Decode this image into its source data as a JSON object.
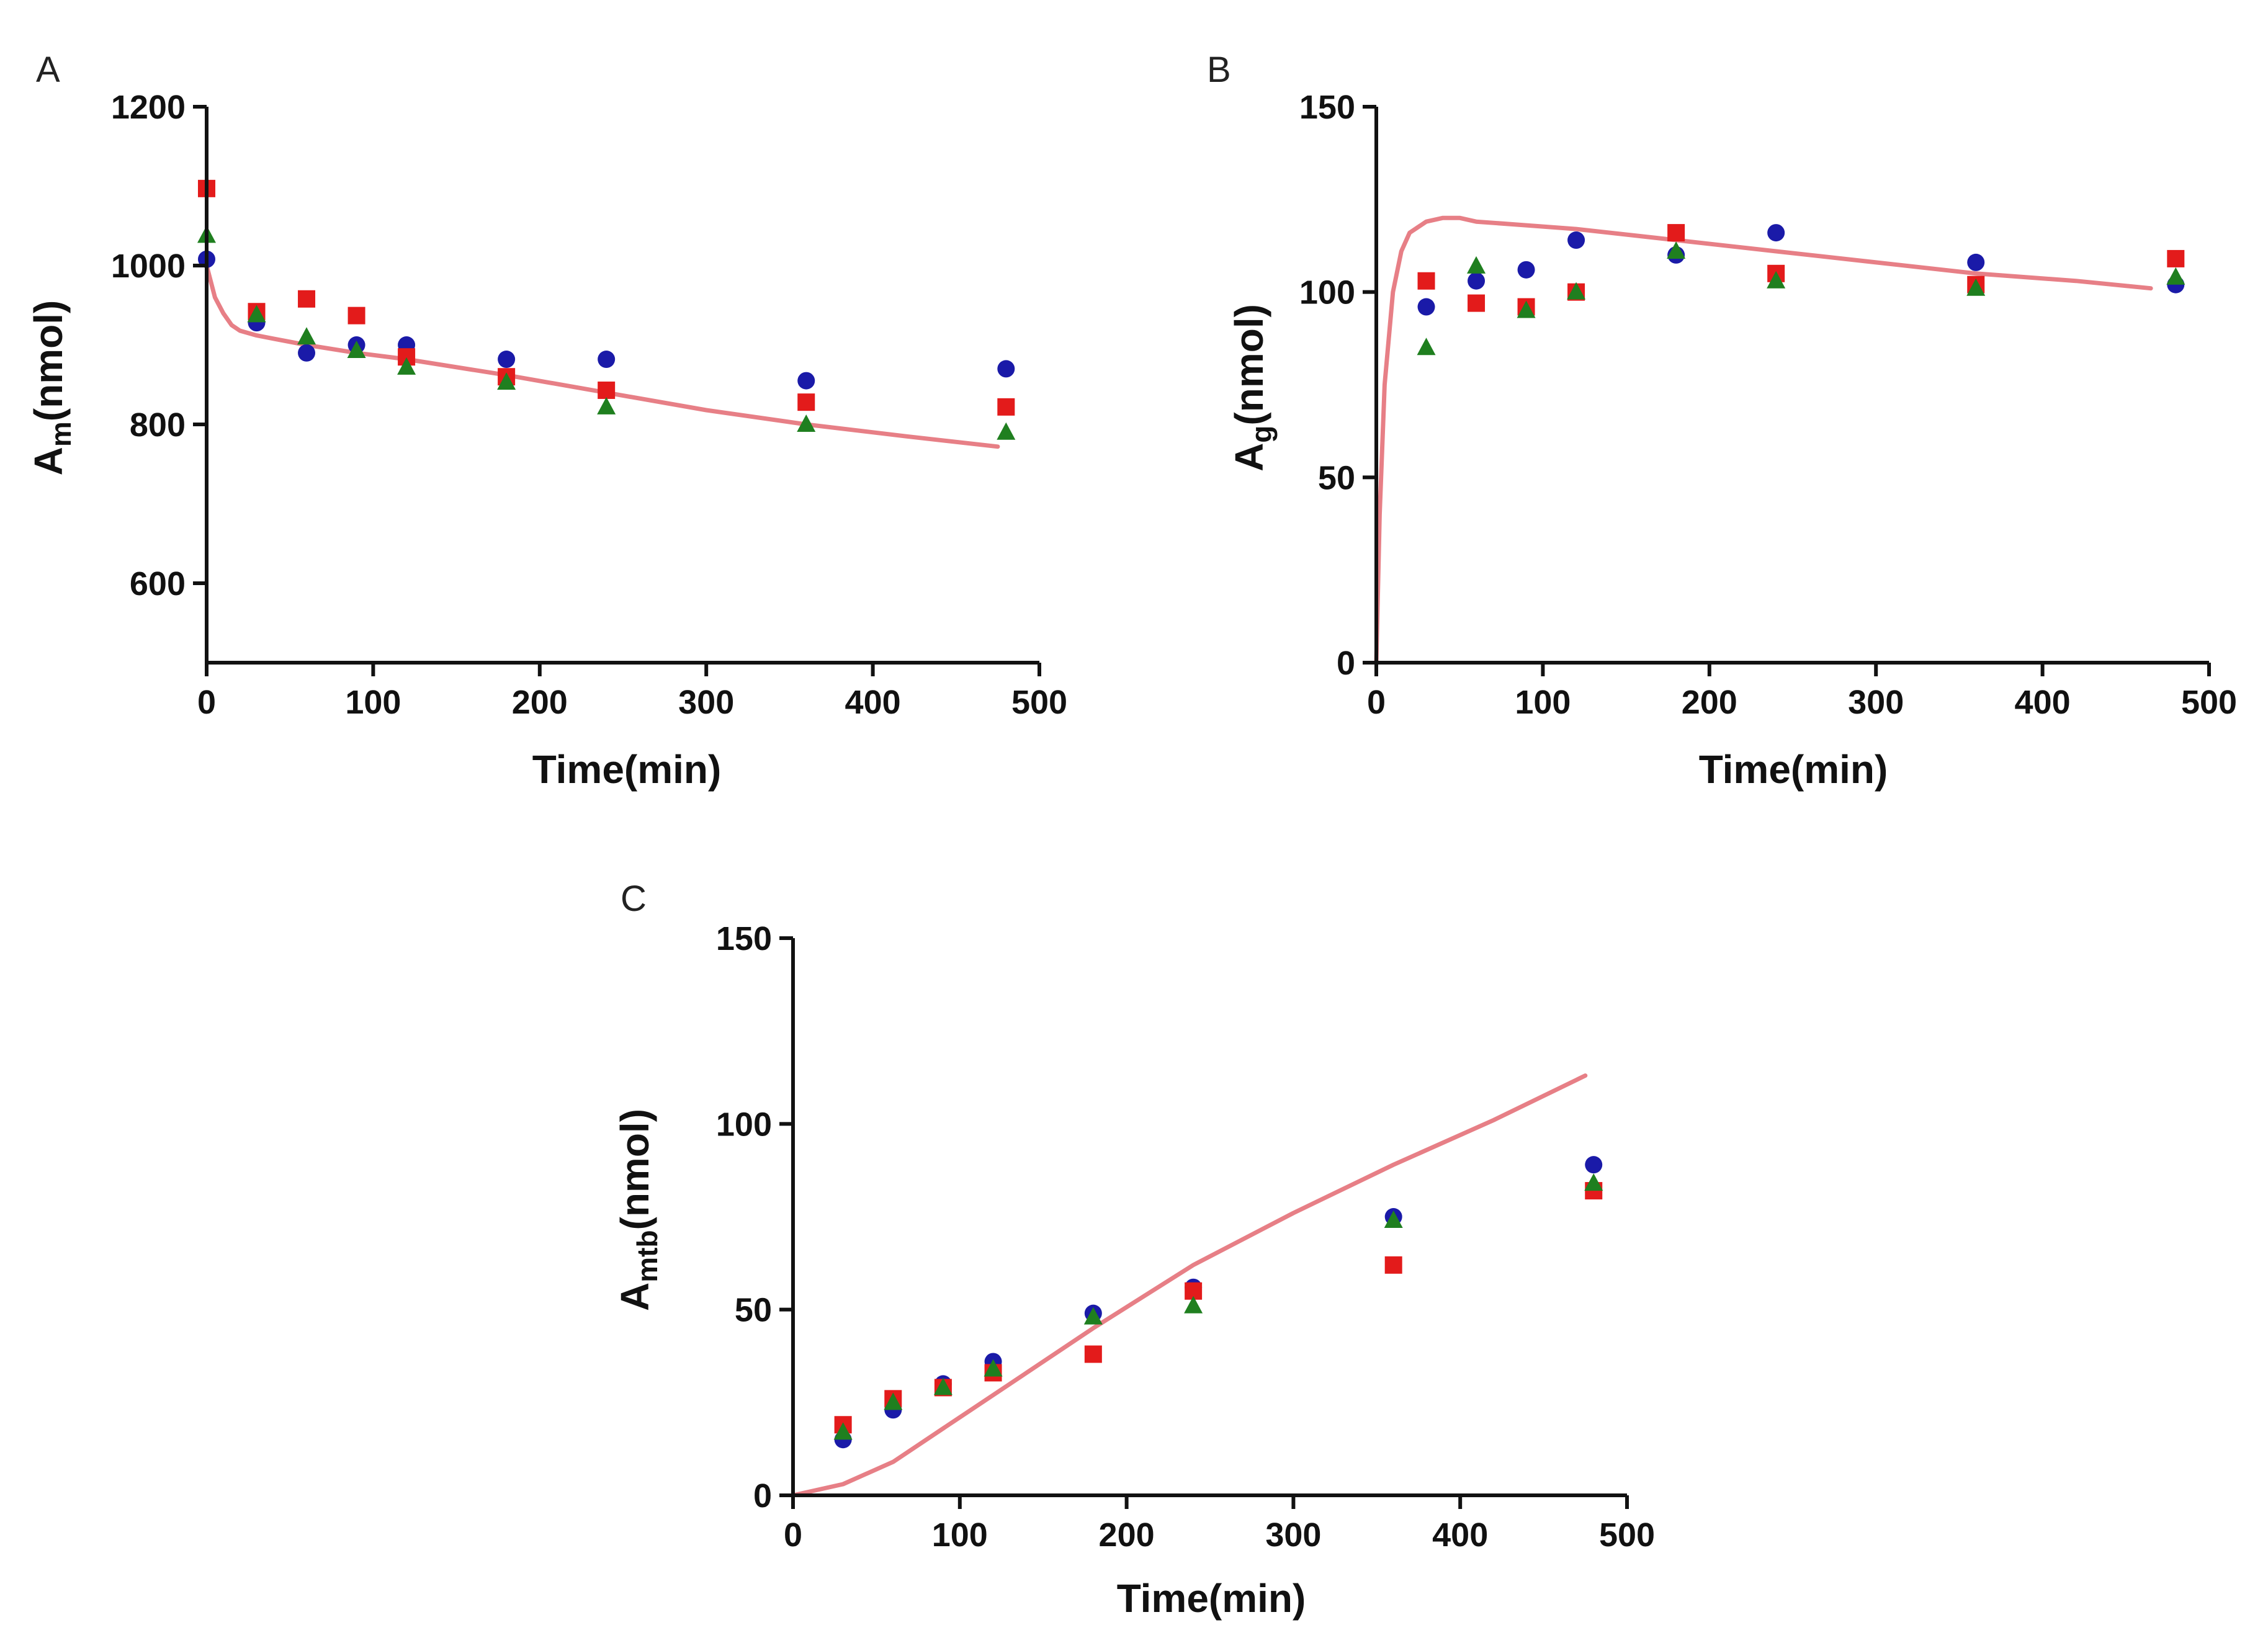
{
  "chart_data": [
    {
      "panel": "A",
      "type": "scatter",
      "xlabel": "Time(min)",
      "ylabel": {
        "main": "A",
        "sub": "m",
        "unit": "(nmol)"
      },
      "xlim": [
        0,
        500
      ],
      "ylim": [
        500,
        1200
      ],
      "xticks": [
        0,
        100,
        200,
        300,
        400,
        500
      ],
      "yticks": [
        600,
        800,
        1000,
        1200
      ],
      "fit_color": "#e77f86",
      "fit": {
        "x": [
          0,
          5,
          10,
          15,
          20,
          30,
          40,
          60,
          90,
          120,
          180,
          240,
          300,
          360,
          420,
          475
        ],
        "y": [
          1000,
          960,
          940,
          925,
          918,
          912,
          908,
          900,
          890,
          882,
          862,
          840,
          818,
          800,
          785,
          772
        ]
      },
      "series": [
        {
          "name": "blue",
          "marker": "circle",
          "color": "#1a1aa8",
          "x": [
            0,
            30,
            60,
            90,
            120,
            180,
            240,
            360,
            480
          ],
          "y": [
            1008,
            928,
            890,
            900,
            900,
            882,
            882,
            855,
            870
          ]
        },
        {
          "name": "red",
          "marker": "square",
          "color": "#e31b1b",
          "x": [
            0,
            30,
            60,
            90,
            120,
            180,
            240,
            360,
            480
          ],
          "y": [
            1097,
            942,
            958,
            937,
            885,
            860,
            843,
            828,
            822
          ]
        },
        {
          "name": "green",
          "marker": "triangle",
          "color": "#1f7f1f",
          "x": [
            0,
            30,
            60,
            90,
            120,
            180,
            240,
            360,
            480
          ],
          "y": [
            1038,
            938,
            910,
            893,
            872,
            853,
            822,
            800,
            790
          ]
        }
      ]
    },
    {
      "panel": "B",
      "type": "scatter",
      "xlabel": "Time(min)",
      "ylabel": {
        "main": "A",
        "sub": "g",
        "unit": "(nmol)"
      },
      "xlim": [
        0,
        500
      ],
      "ylim": [
        0,
        150
      ],
      "xticks": [
        0,
        100,
        200,
        300,
        400,
        500
      ],
      "yticks": [
        0,
        50,
        100,
        150
      ],
      "fit_color": "#e77f86",
      "fit": {
        "x": [
          0,
          2,
          5,
          10,
          15,
          20,
          30,
          40,
          50,
          60,
          90,
          120,
          180,
          240,
          300,
          360,
          420,
          465
        ],
        "y": [
          0,
          40,
          75,
          100,
          111,
          116,
          119,
          120,
          120,
          119,
          118,
          117,
          114,
          111,
          108,
          105,
          103,
          101
        ]
      },
      "series": [
        {
          "name": "blue",
          "marker": "circle",
          "color": "#1a1aa8",
          "x": [
            30,
            60,
            90,
            120,
            180,
            240,
            360,
            480
          ],
          "y": [
            96,
            103,
            106,
            114,
            110,
            116,
            108,
            102
          ]
        },
        {
          "name": "red",
          "marker": "square",
          "color": "#e31b1b",
          "x": [
            30,
            60,
            90,
            120,
            180,
            240,
            360,
            480
          ],
          "y": [
            103,
            97,
            96,
            100,
            116,
            105,
            102,
            109
          ]
        },
        {
          "name": "green",
          "marker": "triangle",
          "color": "#1f7f1f",
          "x": [
            30,
            60,
            90,
            120,
            180,
            240,
            360,
            480
          ],
          "y": [
            85,
            107,
            95,
            100,
            111,
            103,
            101,
            104
          ]
        }
      ]
    },
    {
      "panel": "C",
      "type": "scatter",
      "xlabel": "Time(min)",
      "ylabel": {
        "main": "A",
        "sub": "mtb",
        "unit": "(nmol)"
      },
      "xlim": [
        0,
        500
      ],
      "ylim": [
        0,
        150
      ],
      "xticks": [
        0,
        100,
        200,
        300,
        400,
        500
      ],
      "yticks": [
        0,
        50,
        100,
        150
      ],
      "fit_color": "#e77f86",
      "fit": {
        "x": [
          0,
          30,
          60,
          90,
          120,
          180,
          240,
          300,
          360,
          420,
          475
        ],
        "y": [
          0,
          3,
          9,
          18,
          27,
          45,
          62,
          76,
          89,
          101,
          113
        ]
      },
      "series": [
        {
          "name": "blue",
          "marker": "circle",
          "color": "#1a1aa8",
          "x": [
            30,
            60,
            90,
            120,
            180,
            240,
            360,
            480
          ],
          "y": [
            15,
            23,
            30,
            36,
            49,
            56,
            75,
            89
          ]
        },
        {
          "name": "red",
          "marker": "square",
          "color": "#e31b1b",
          "x": [
            30,
            60,
            90,
            120,
            180,
            240,
            360,
            480
          ],
          "y": [
            19,
            26,
            29,
            33,
            38,
            55,
            62,
            82
          ]
        },
        {
          "name": "green",
          "marker": "triangle",
          "color": "#1f7f1f",
          "x": [
            30,
            60,
            90,
            120,
            180,
            240,
            360,
            480
          ],
          "y": [
            17,
            25,
            29,
            34,
            48,
            51,
            74,
            84
          ]
        }
      ]
    }
  ]
}
